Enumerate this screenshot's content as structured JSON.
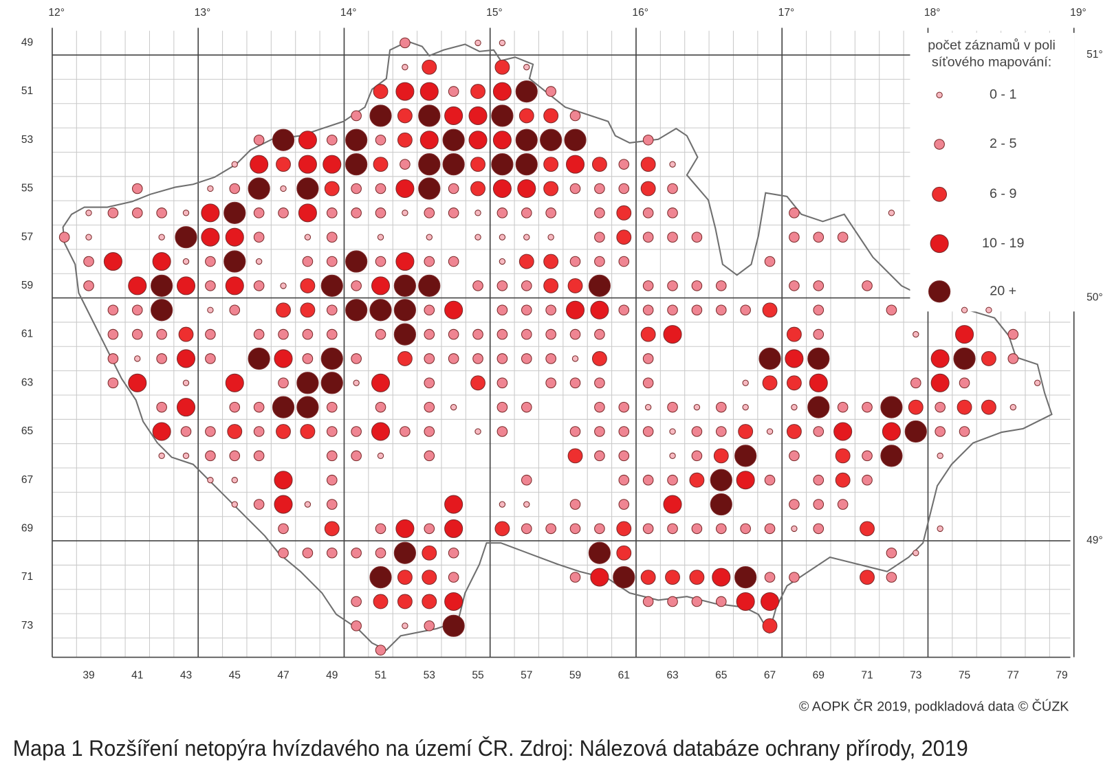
{
  "map": {
    "lon_ticks": [
      {
        "value": 12,
        "label": "12°"
      },
      {
        "value": 13,
        "label": "13°"
      },
      {
        "value": 14,
        "label": "14°"
      },
      {
        "value": 15,
        "label": "15°"
      },
      {
        "value": 16,
        "label": "16°"
      },
      {
        "value": 17,
        "label": "17°"
      },
      {
        "value": 18,
        "label": "18°"
      },
      {
        "value": 19,
        "label": "19°"
      }
    ],
    "lat_ticks": [
      {
        "value": 51,
        "label": "51°"
      },
      {
        "value": 50,
        "label": "50°"
      },
      {
        "value": 49,
        "label": "49°"
      }
    ],
    "row_ticks": [
      49,
      51,
      53,
      55,
      57,
      59,
      61,
      63,
      65,
      67,
      69,
      71,
      73
    ],
    "col_ticks": [
      39,
      41,
      43,
      45,
      47,
      49,
      51,
      53,
      55,
      57,
      59,
      61,
      63,
      65,
      67,
      69,
      71,
      73,
      75,
      77,
      79
    ],
    "legend": {
      "title": [
        "počet záznamů v poli",
        "síťového mapování:"
      ],
      "classes": [
        "0 - 1",
        "2 - 5",
        "6 - 9",
        "10 - 19",
        "20 +"
      ],
      "colors": [
        "#f6b8c0",
        "#ef8592",
        "#ee2f2f",
        "#e4191e",
        "#6b1212"
      ]
    },
    "dot_rows": [
      {
        "row": 49,
        "cols": [
          52,
          55,
          56
        ],
        "classes": [
          1,
          0,
          0
        ]
      },
      {
        "row": 50,
        "cols": [
          52,
          53,
          56,
          57
        ],
        "classes": [
          0,
          2,
          2,
          0
        ]
      },
      {
        "row": 51,
        "cols": [
          51,
          52,
          53,
          54,
          55,
          56,
          57,
          58
        ],
        "classes": [
          2,
          3,
          3,
          1,
          2,
          3,
          4,
          1
        ]
      },
      {
        "row": 52,
        "cols": [
          50,
          51,
          52,
          53,
          54,
          55,
          56,
          57,
          58,
          59
        ],
        "classes": [
          1,
          4,
          2,
          4,
          3,
          3,
          4,
          2,
          2,
          1
        ]
      },
      {
        "row": 53,
        "cols": [
          46,
          47,
          48,
          49,
          50,
          51,
          52,
          53,
          54,
          55,
          56,
          57,
          58,
          59,
          62
        ],
        "classes": [
          1,
          4,
          3,
          1,
          4,
          1,
          2,
          3,
          4,
          3,
          3,
          4,
          4,
          4,
          1
        ]
      },
      {
        "row": 54,
        "cols": [
          45,
          46,
          47,
          48,
          49,
          50,
          51,
          52,
          53,
          54,
          55,
          56,
          57,
          58,
          59,
          60,
          61,
          62,
          63
        ],
        "classes": [
          0,
          3,
          2,
          3,
          3,
          4,
          2,
          1,
          4,
          4,
          2,
          4,
          4,
          2,
          3,
          2,
          1,
          2,
          0
        ]
      },
      {
        "row": 55,
        "cols": [
          41,
          44,
          45,
          46,
          47,
          48,
          49,
          50,
          51,
          52,
          53,
          54,
          55,
          56,
          57,
          58,
          59,
          60,
          61,
          62,
          63
        ],
        "classes": [
          1,
          0,
          1,
          4,
          0,
          4,
          2,
          1,
          1,
          3,
          4,
          1,
          2,
          3,
          3,
          2,
          1,
          1,
          1,
          2,
          1
        ]
      },
      {
        "row": 56,
        "cols": [
          39,
          40,
          41,
          42,
          43,
          44,
          45,
          46,
          47,
          48,
          49,
          50,
          51,
          52,
          53,
          54,
          55,
          56,
          57,
          58,
          60,
          61,
          62,
          63,
          68,
          72
        ],
        "classes": [
          0,
          1,
          1,
          1,
          0,
          3,
          4,
          1,
          1,
          3,
          1,
          1,
          1,
          0,
          1,
          1,
          0,
          1,
          1,
          1,
          1,
          2,
          1,
          1,
          1,
          0
        ]
      },
      {
        "row": 57,
        "cols": [
          38,
          39,
          42,
          43,
          44,
          45,
          46,
          48,
          49,
          51,
          53,
          55,
          56,
          57,
          58,
          60,
          61,
          62,
          63,
          64,
          68,
          69,
          70
        ],
        "classes": [
          1,
          0,
          0,
          4,
          3,
          3,
          1,
          0,
          1,
          0,
          0,
          0,
          0,
          0,
          0,
          1,
          2,
          1,
          1,
          1,
          1,
          1,
          1
        ]
      },
      {
        "row": 58,
        "cols": [
          39,
          40,
          42,
          43,
          44,
          45,
          46,
          48,
          49,
          50,
          51,
          52,
          53,
          54,
          56,
          57,
          58,
          59,
          60,
          61,
          67
        ],
        "classes": [
          1,
          3,
          3,
          0,
          1,
          4,
          0,
          1,
          1,
          4,
          1,
          3,
          1,
          1,
          0,
          2,
          2,
          1,
          1,
          1,
          1
        ]
      },
      {
        "row": 59,
        "cols": [
          39,
          41,
          42,
          43,
          44,
          45,
          46,
          47,
          48,
          49,
          50,
          51,
          52,
          53,
          55,
          56,
          57,
          58,
          59,
          60,
          62,
          63,
          64,
          65,
          68,
          69,
          71
        ],
        "classes": [
          1,
          3,
          4,
          3,
          1,
          3,
          1,
          0,
          2,
          4,
          1,
          3,
          4,
          4,
          1,
          1,
          1,
          2,
          2,
          4,
          1,
          1,
          1,
          1,
          1,
          1,
          1
        ]
      },
      {
        "row": 60,
        "cols": [
          40,
          41,
          42,
          44,
          45,
          47,
          48,
          49,
          50,
          51,
          52,
          53,
          54,
          56,
          57,
          58,
          59,
          60,
          61,
          62,
          63,
          64,
          65,
          66,
          67,
          69,
          72,
          75,
          76
        ],
        "classes": [
          1,
          1,
          4,
          0,
          1,
          2,
          2,
          1,
          4,
          4,
          4,
          1,
          3,
          1,
          1,
          1,
          3,
          3,
          1,
          1,
          1,
          1,
          1,
          1,
          2,
          1,
          1,
          0,
          0
        ]
      },
      {
        "row": 61,
        "cols": [
          40,
          41,
          42,
          43,
          44,
          46,
          47,
          48,
          49,
          51,
          52,
          53,
          54,
          55,
          56,
          57,
          58,
          59,
          60,
          62,
          63,
          68,
          69,
          73,
          75,
          77
        ],
        "classes": [
          1,
          1,
          1,
          2,
          1,
          1,
          1,
          1,
          1,
          1,
          4,
          1,
          1,
          1,
          1,
          1,
          1,
          1,
          1,
          2,
          3,
          2,
          1,
          0,
          3,
          1
        ]
      },
      {
        "row": 62,
        "cols": [
          40,
          41,
          42,
          43,
          44,
          46,
          47,
          48,
          49,
          50,
          52,
          53,
          54,
          55,
          56,
          57,
          58,
          59,
          60,
          62,
          67,
          68,
          69,
          74,
          75,
          76,
          77
        ],
        "classes": [
          1,
          0,
          1,
          3,
          1,
          4,
          3,
          1,
          4,
          1,
          2,
          1,
          1,
          1,
          1,
          1,
          1,
          0,
          2,
          1,
          4,
          3,
          4,
          3,
          4,
          2,
          1
        ]
      },
      {
        "row": 63,
        "cols": [
          40,
          41,
          43,
          45,
          47,
          48,
          49,
          50,
          51,
          53,
          55,
          56,
          58,
          59,
          60,
          62,
          66,
          67,
          68,
          69,
          73,
          74,
          75,
          78
        ],
        "classes": [
          1,
          3,
          0,
          3,
          1,
          4,
          4,
          0,
          3,
          1,
          2,
          1,
          1,
          1,
          1,
          1,
          0,
          2,
          2,
          3,
          1,
          3,
          1,
          0
        ]
      },
      {
        "row": 64,
        "cols": [
          42,
          43,
          45,
          46,
          47,
          48,
          49,
          51,
          53,
          54,
          56,
          57,
          60,
          61,
          62,
          63,
          64,
          65,
          66,
          68,
          69,
          70,
          71,
          72,
          73,
          74,
          75,
          76,
          77
        ],
        "classes": [
          1,
          3,
          1,
          1,
          4,
          4,
          1,
          1,
          1,
          0,
          1,
          1,
          1,
          1,
          0,
          1,
          0,
          1,
          0,
          0,
          4,
          1,
          1,
          4,
          2,
          1,
          2,
          2,
          0
        ]
      },
      {
        "row": 65,
        "cols": [
          42,
          43,
          44,
          45,
          46,
          47,
          48,
          49,
          50,
          51,
          52,
          53,
          55,
          56,
          59,
          60,
          61,
          62,
          63,
          64,
          65,
          66,
          67,
          68,
          69,
          70,
          72,
          73,
          74,
          75
        ],
        "classes": [
          3,
          1,
          1,
          2,
          1,
          2,
          2,
          1,
          1,
          3,
          1,
          1,
          0,
          1,
          1,
          1,
          1,
          1,
          0,
          1,
          1,
          2,
          0,
          2,
          1,
          3,
          3,
          4,
          1,
          1
        ]
      },
      {
        "row": 66,
        "cols": [
          42,
          43,
          44,
          45,
          46,
          49,
          50,
          51,
          53,
          59,
          60,
          61,
          63,
          64,
          65,
          66,
          68,
          70,
          71,
          72,
          74
        ],
        "classes": [
          0,
          0,
          1,
          1,
          1,
          1,
          1,
          0,
          1,
          2,
          1,
          1,
          0,
          1,
          2,
          4,
          1,
          2,
          1,
          4,
          0
        ]
      },
      {
        "row": 67,
        "cols": [
          44,
          45,
          47,
          49,
          57,
          61,
          62,
          63,
          64,
          65,
          66,
          67,
          69,
          70,
          71
        ],
        "classes": [
          0,
          0,
          3,
          1,
          1,
          1,
          1,
          1,
          2,
          4,
          3,
          1,
          1,
          2,
          1
        ]
      },
      {
        "row": 68,
        "cols": [
          45,
          46,
          47,
          48,
          49,
          54,
          56,
          57,
          59,
          61,
          63,
          65,
          68,
          69,
          70
        ],
        "classes": [
          0,
          1,
          3,
          0,
          1,
          3,
          0,
          0,
          1,
          1,
          3,
          4,
          1,
          1,
          1
        ]
      },
      {
        "row": 69,
        "cols": [
          47,
          49,
          51,
          52,
          53,
          54,
          56,
          57,
          58,
          59,
          60,
          61,
          62,
          63,
          64,
          65,
          66,
          67,
          68,
          69,
          71,
          74
        ],
        "classes": [
          1,
          2,
          1,
          3,
          1,
          3,
          2,
          1,
          1,
          1,
          1,
          2,
          1,
          1,
          1,
          1,
          1,
          1,
          0,
          1,
          2,
          0
        ]
      },
      {
        "row": 70,
        "cols": [
          47,
          48,
          49,
          50,
          51,
          52,
          53,
          54,
          60,
          61,
          72,
          73
        ],
        "classes": [
          1,
          1,
          1,
          1,
          1,
          4,
          2,
          1,
          4,
          2,
          1,
          0
        ]
      },
      {
        "row": 71,
        "cols": [
          51,
          52,
          53,
          54,
          59,
          60,
          61,
          62,
          63,
          64,
          65,
          66,
          67,
          68,
          71,
          72
        ],
        "classes": [
          4,
          2,
          2,
          1,
          1,
          3,
          4,
          2,
          2,
          2,
          3,
          4,
          1,
          1,
          2,
          1
        ]
      },
      {
        "row": 72,
        "cols": [
          50,
          51,
          52,
          53,
          54,
          62,
          63,
          64,
          65,
          66,
          67
        ],
        "classes": [
          1,
          2,
          2,
          2,
          3,
          1,
          1,
          1,
          1,
          3,
          3
        ]
      },
      {
        "row": 73,
        "cols": [
          50,
          52,
          53,
          54,
          67
        ],
        "classes": [
          1,
          0,
          1,
          4,
          2
        ]
      },
      {
        "row": 74,
        "cols": [
          51
        ],
        "classes": [
          1
        ]
      }
    ],
    "copyright": "© AOPK ČR 2019, podkladová data © ČÚZK"
  },
  "caption": "Mapa 1 Rozšíření netopýra hvízdavého na území ČR. Zdroj: Nálezová databáze ochrany přírody, 2019"
}
